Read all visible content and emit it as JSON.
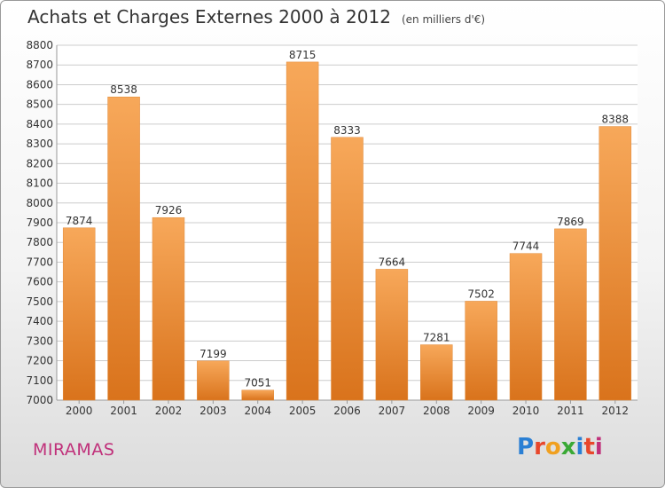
{
  "header": {
    "title": "Achats et Charges Externes 2000 à 2012",
    "unit": "(en milliers d'€)"
  },
  "footer": {
    "city": "MIRAMAS",
    "logo_letters": [
      {
        "ch": "P",
        "color": "#2a7fd4"
      },
      {
        "ch": "r",
        "color": "#e8472b"
      },
      {
        "ch": "o",
        "color": "#f0a020"
      },
      {
        "ch": "x",
        "color": "#3aa935"
      },
      {
        "ch": "i",
        "color": "#2a7fd4"
      },
      {
        "ch": "t",
        "color": "#e8472b"
      },
      {
        "ch": "i",
        "color": "#c0307a"
      }
    ]
  },
  "chart_data": {
    "type": "bar",
    "title": "Achats et Charges Externes 2000 à 2012",
    "subtitle": "(en milliers d'€)",
    "categories": [
      "2000",
      "2001",
      "2002",
      "2003",
      "2004",
      "2005",
      "2006",
      "2007",
      "2008",
      "2009",
      "2010",
      "2011",
      "2012"
    ],
    "values": [
      7874,
      8538,
      7926,
      7199,
      7051,
      8715,
      8333,
      7664,
      7281,
      7502,
      7744,
      7869,
      8388
    ],
    "ylim": [
      7000,
      8800
    ],
    "yticks": [
      7000,
      7100,
      7200,
      7300,
      7400,
      7500,
      7600,
      7700,
      7800,
      7900,
      8000,
      8100,
      8200,
      8300,
      8400,
      8500,
      8600,
      8700,
      8800
    ],
    "grid": true,
    "legend": "none",
    "colors": {
      "bar_top": "#f7a85a",
      "bar_bottom": "#d9731c",
      "grid": "#cccccc"
    }
  }
}
